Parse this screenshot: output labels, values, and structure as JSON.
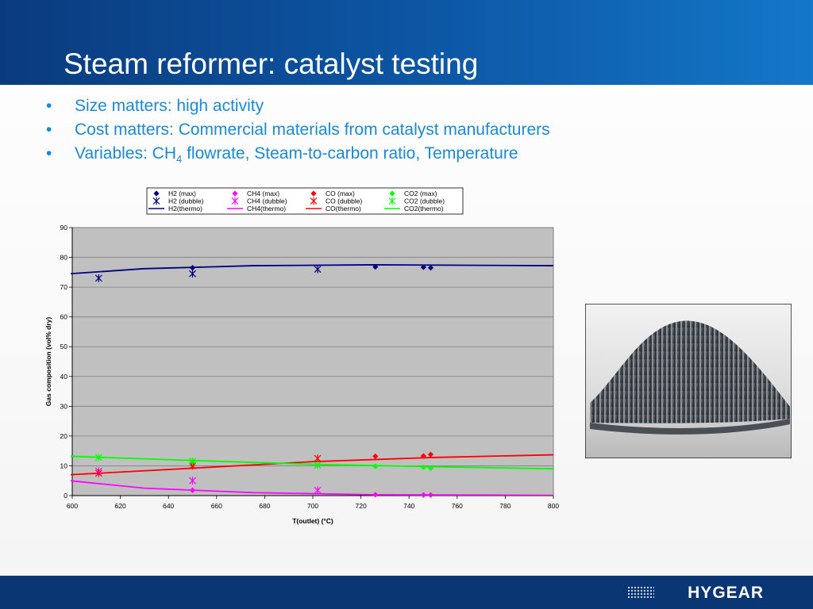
{
  "slide": {
    "title": "Steam reformer: catalyst testing",
    "bullet_marker": "•",
    "bullets": [
      {
        "text": "Size matters: high activity"
      },
      {
        "text": "Cost matters: Commercial materials from catalyst manufacturers"
      },
      {
        "text_before": "Variables: CH",
        "subscript": "4",
        "text_after": " flowrate, Steam-to-carbon ratio, Temperature"
      }
    ],
    "logo": "HYGEAR",
    "colors": {
      "header": "#0d58a6",
      "bullet_text": "#1a8ad6",
      "footer": "#0a3673"
    }
  },
  "photo": {
    "description_icon": "corrugated-catalyst-sheet-photo"
  },
  "chart_data": {
    "type": "scatter",
    "xlabel": "T(outlet) (°C)",
    "ylabel": "Gas composition (vol% dry)",
    "xlim": [
      600,
      800
    ],
    "ylim": [
      0,
      90
    ],
    "xticks": [
      600,
      620,
      640,
      660,
      680,
      700,
      720,
      740,
      760,
      780,
      800
    ],
    "yticks": [
      0,
      10,
      20,
      30,
      40,
      50,
      60,
      70,
      80,
      90
    ],
    "grid": true,
    "legend_position": "top",
    "series": [
      {
        "name": "H2 (max)",
        "kind": "diamond",
        "color": "#000080",
        "points": [
          [
            650,
            76.5
          ],
          [
            726,
            76.8
          ],
          [
            746,
            76.7
          ],
          [
            749,
            76.5
          ]
        ]
      },
      {
        "name": "CH4 (max)",
        "kind": "diamond",
        "color": "#ff00ff",
        "points": [
          [
            650,
            1.8
          ],
          [
            726,
            0.3
          ],
          [
            746,
            0.2
          ],
          [
            749,
            0.2
          ]
        ]
      },
      {
        "name": "CO (max)",
        "kind": "diamond",
        "color": "#ff0000",
        "points": [
          [
            650,
            10.5
          ],
          [
            726,
            13.2
          ],
          [
            746,
            13.3
          ],
          [
            749,
            13.8
          ]
        ]
      },
      {
        "name": "CO2 (max)",
        "kind": "diamond",
        "color": "#00ff00",
        "points": [
          [
            650,
            11.5
          ],
          [
            726,
            9.8
          ],
          [
            746,
            9.5
          ],
          [
            749,
            9.2
          ]
        ]
      },
      {
        "name": "H2 (dubble)",
        "kind": "star",
        "color": "#000080",
        "points": [
          [
            611,
            73.0
          ],
          [
            650,
            74.5
          ],
          [
            702,
            76.0
          ]
        ]
      },
      {
        "name": "CH4 (dubble)",
        "kind": "star",
        "color": "#ff00ff",
        "points": [
          [
            611,
            8.2
          ],
          [
            650,
            5.0
          ],
          [
            702,
            1.8
          ]
        ]
      },
      {
        "name": "CO (dubble)",
        "kind": "star",
        "color": "#ff0000",
        "points": [
          [
            611,
            7.5
          ],
          [
            650,
            10.0
          ],
          [
            702,
            12.5
          ]
        ]
      },
      {
        "name": "CO2 (dubble)",
        "kind": "star",
        "color": "#00ff00",
        "points": [
          [
            611,
            12.8
          ],
          [
            650,
            11.5
          ],
          [
            702,
            10.2
          ]
        ]
      },
      {
        "name": "H2(thermo)",
        "kind": "line",
        "color": "#000080",
        "points": [
          [
            599,
            74.5
          ],
          [
            630,
            76.2
          ],
          [
            675,
            77.2
          ],
          [
            725,
            77.5
          ],
          [
            800,
            77.2
          ]
        ]
      },
      {
        "name": "CH4(thermo)",
        "kind": "line",
        "color": "#ff00ff",
        "points": [
          [
            599,
            5.0
          ],
          [
            630,
            2.5
          ],
          [
            675,
            1.0
          ],
          [
            725,
            0.3
          ],
          [
            800,
            0.1
          ]
        ]
      },
      {
        "name": "CO(thermo)",
        "kind": "line",
        "color": "#ff0000",
        "points": [
          [
            599,
            7.0
          ],
          [
            650,
            9.2
          ],
          [
            700,
            11.4
          ],
          [
            750,
            12.8
          ],
          [
            800,
            13.7
          ]
        ]
      },
      {
        "name": "CO2(thermo)",
        "kind": "line",
        "color": "#00ff00",
        "points": [
          [
            599,
            13.2
          ],
          [
            650,
            11.8
          ],
          [
            700,
            10.5
          ],
          [
            750,
            9.7
          ],
          [
            800,
            9.0
          ]
        ]
      }
    ]
  }
}
